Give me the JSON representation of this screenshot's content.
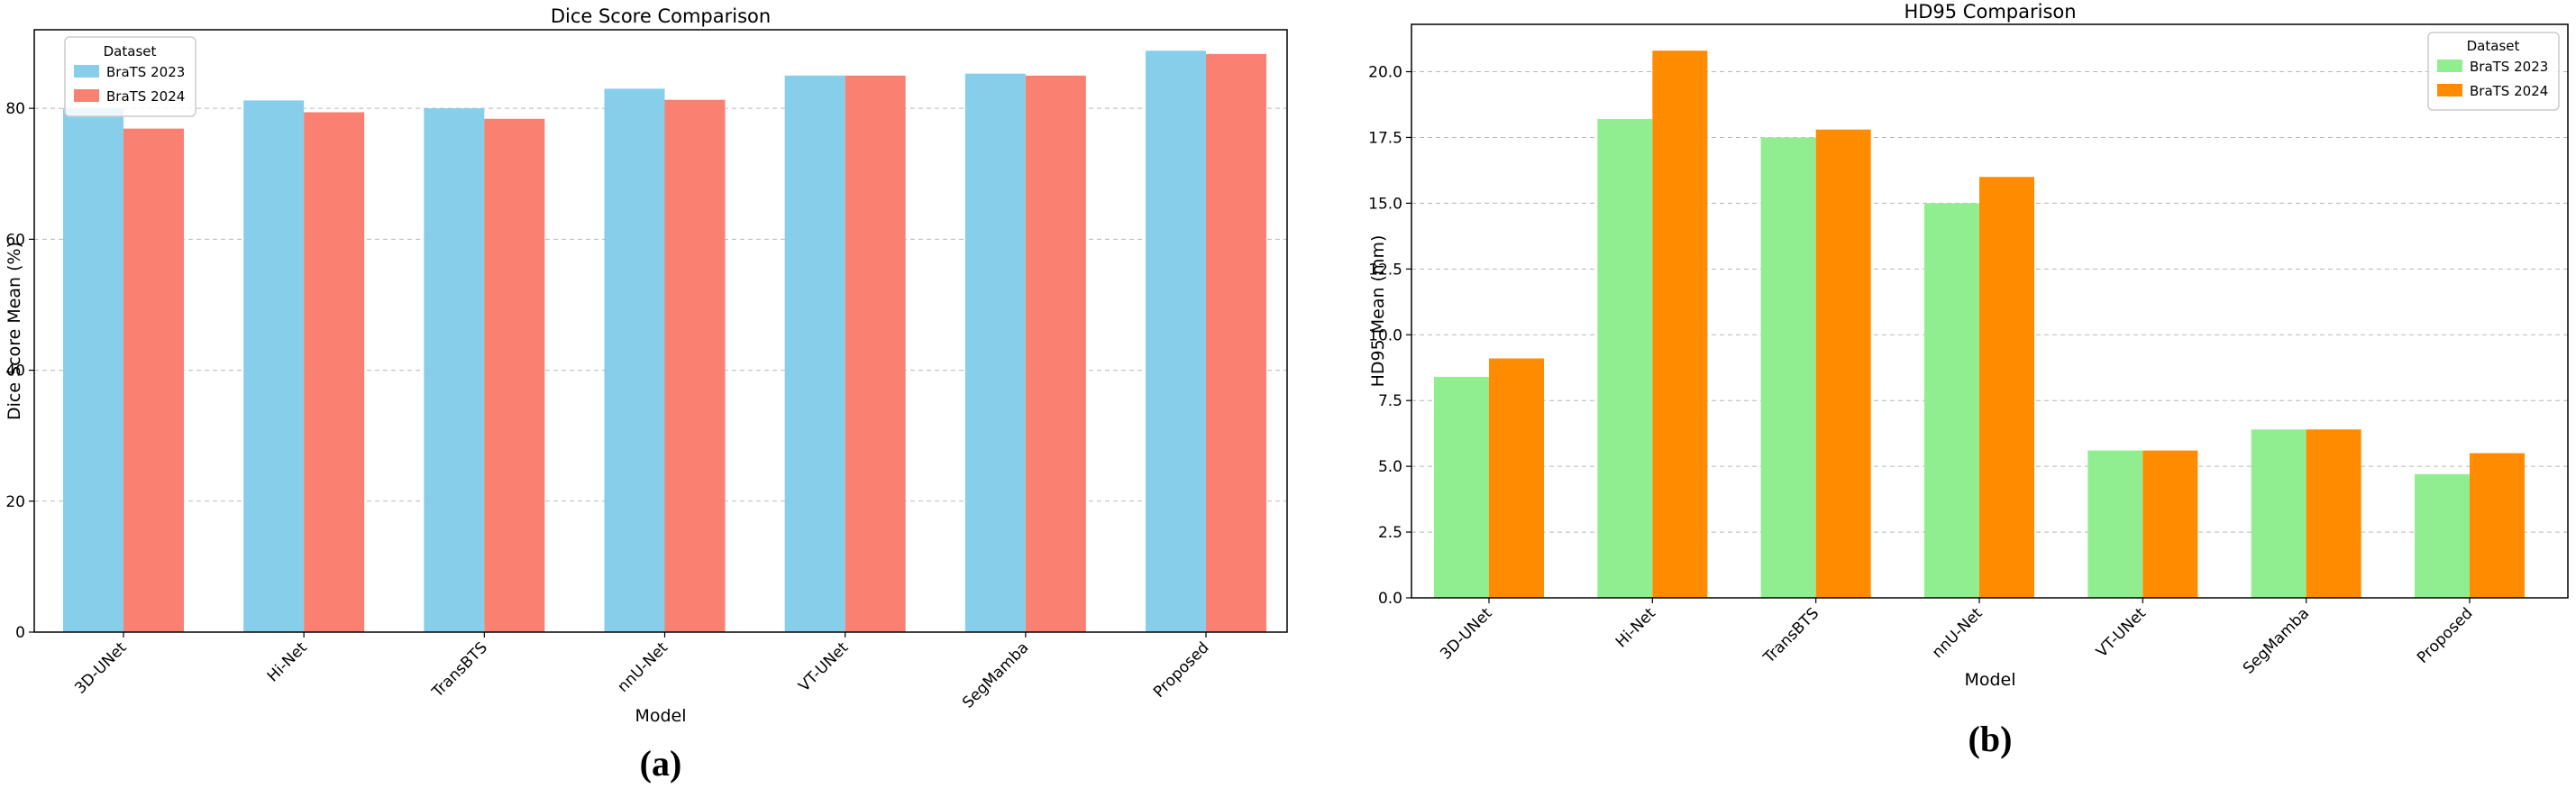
{
  "chart_data": [
    {
      "type": "bar",
      "title": "Dice Score Comparison",
      "xlabel": "Model",
      "ylabel": "Dice Score Mean (%)",
      "ylim": [
        0,
        92
      ],
      "yticks": [
        0,
        20,
        40,
        60,
        80
      ],
      "grid": true,
      "categories": [
        "3D-UNet",
        "Hi-Net",
        "TransBTS",
        "nnU-Net",
        "VT-UNet",
        "SegMamba",
        "Proposed"
      ],
      "legend": {
        "title": "Dataset",
        "placement": "top-left"
      },
      "series": [
        {
          "name": "BraTS 2023",
          "color": "#87CEEB",
          "values": [
            80.0,
            81.2,
            80.0,
            83.0,
            85.0,
            85.3,
            88.8
          ]
        },
        {
          "name": "BraTS 2024",
          "color": "#FA8072",
          "values": [
            76.9,
            79.4,
            78.4,
            81.3,
            85.0,
            85.0,
            88.3
          ]
        }
      ],
      "caption": "(a)"
    },
    {
      "type": "bar",
      "title": "HD95 Comparison",
      "xlabel": "Model",
      "ylabel": "HD95 Mean (mm)",
      "ylim": [
        0,
        21.8
      ],
      "yticks": [
        0.0,
        2.5,
        5.0,
        7.5,
        10.0,
        12.5,
        15.0,
        17.5,
        20.0
      ],
      "ytick_labels": [
        "0.0",
        "2.5",
        "5.0",
        "7.5",
        "10.0",
        "12.5",
        "15.0",
        "17.5",
        "20.0"
      ],
      "grid": true,
      "categories": [
        "3D-UNet",
        "Hi-Net",
        "TransBTS",
        "nnU-Net",
        "VT-UNet",
        "SegMamba",
        "Proposed"
      ],
      "legend": {
        "title": "Dataset",
        "placement": "top-right"
      },
      "series": [
        {
          "name": "BraTS 2023",
          "color": "#90EE90",
          "values": [
            8.4,
            18.2,
            17.5,
            15.0,
            5.6,
            6.4,
            4.7
          ]
        },
        {
          "name": "BraTS 2024",
          "color": "#FF8C00",
          "values": [
            9.1,
            20.8,
            17.8,
            16.0,
            5.6,
            6.4,
            5.5
          ]
        }
      ],
      "caption": "(b)"
    }
  ]
}
